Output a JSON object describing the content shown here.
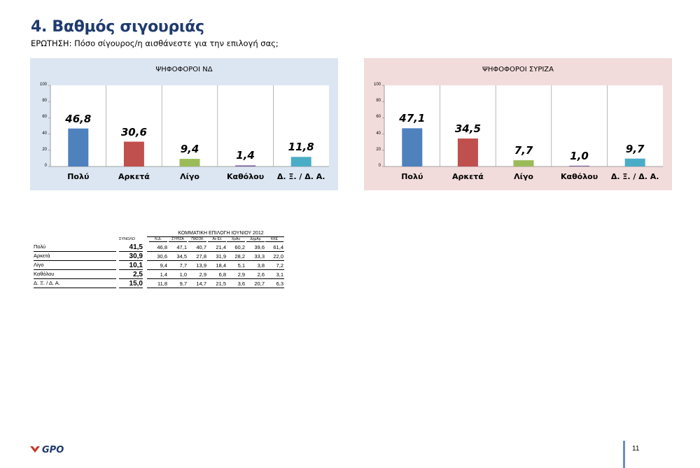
{
  "header": {
    "title": "4. Βαθμός σιγουριάς",
    "question": "ΕΡΩΤΗΣΗ: Πόσο σίγουρος/η αισθάνεστε για την επιλογή σας;"
  },
  "chart_data": [
    {
      "type": "bar",
      "title": "ΨΗΦΟΦΟΡΟΙ ΝΔ",
      "categories": [
        "Πολύ",
        "Αρκετά",
        "Λίγο",
        "Καθόλου",
        "Δ. Ξ. / Δ. Α."
      ],
      "values": [
        46.8,
        30.6,
        9.4,
        1.4,
        11.8
      ],
      "value_labels": [
        "46,8",
        "30,6",
        "9,4",
        "1,4",
        "11,8"
      ],
      "ylim": [
        0,
        100
      ],
      "yticks": [
        "0",
        "20",
        "40",
        "60",
        "80",
        "100"
      ],
      "colors": [
        "#4f81bd",
        "#c0504d",
        "#9bbb59",
        "#8064a2",
        "#4bacc6"
      ],
      "background": "#dce6f2"
    },
    {
      "type": "bar",
      "title": "ΨΗΦΟΦΟΡΟΙ ΣΥΡΙΖΑ",
      "categories": [
        "Πολύ",
        "Αρκετά",
        "Λίγο",
        "Καθόλου",
        "Δ. Ξ. / Δ. Α."
      ],
      "values": [
        47.1,
        34.5,
        7.7,
        1.0,
        9.7
      ],
      "value_labels": [
        "47,1",
        "34,5",
        "7,7",
        "1,0",
        "9,7"
      ],
      "ylim": [
        0,
        100
      ],
      "yticks": [
        "0",
        "20",
        "40",
        "60",
        "80",
        "100"
      ],
      "colors": [
        "#4f81bd",
        "#c0504d",
        "#9bbb59",
        "#8064a2",
        "#4bacc6"
      ],
      "background": "#f2dcdb"
    },
    {
      "type": "table",
      "caption": "ΚΟΜΜΑΤΙΚΗ ΕΠΙΛΟΓΗ ΙΟΥΝΙΟΥ 2012",
      "total_header": "ΣΥΝΟΛΟ",
      "columns": [
        "Ν.Δ.",
        "ΣΥΡΙΖΑ",
        "ΠΑΣΟΚ",
        "Αν Ελ",
        "ΧρΑυ",
        "ΔημΑρ",
        "ΚΚΕ"
      ],
      "rows": [
        {
          "label": "Πολύ",
          "total": "41,5",
          "values": [
            "46,8",
            "47,1",
            "40,7",
            "21,4",
            "60,2",
            "39,6",
            "61,4"
          ]
        },
        {
          "label": "Αρκετά",
          "total": "30,9",
          "values": [
            "30,6",
            "34,5",
            "27,8",
            "31,9",
            "28,2",
            "33,3",
            "22,0"
          ]
        },
        {
          "label": "Λίγο",
          "total": "10,1",
          "values": [
            "9,4",
            "7,7",
            "13,9",
            "18,4",
            "5,1",
            "3,8",
            "7,2"
          ]
        },
        {
          "label": "Καθόλου",
          "total": "2,5",
          "values": [
            "1,4",
            "1,0",
            "2,9",
            "6,8",
            "2,9",
            "2,6",
            "3,1"
          ]
        },
        {
          "label": "Δ. Ξ. / Δ. Α.",
          "total": "15,0",
          "values": [
            "11,8",
            "9,7",
            "14,7",
            "21,5",
            "3,6",
            "20,7",
            "6,3"
          ]
        }
      ]
    }
  ],
  "footer": {
    "logo_text": "GPO",
    "page_number": "11",
    "logo_color": "#1f3a6e",
    "logo_accent": "#c0392b"
  }
}
